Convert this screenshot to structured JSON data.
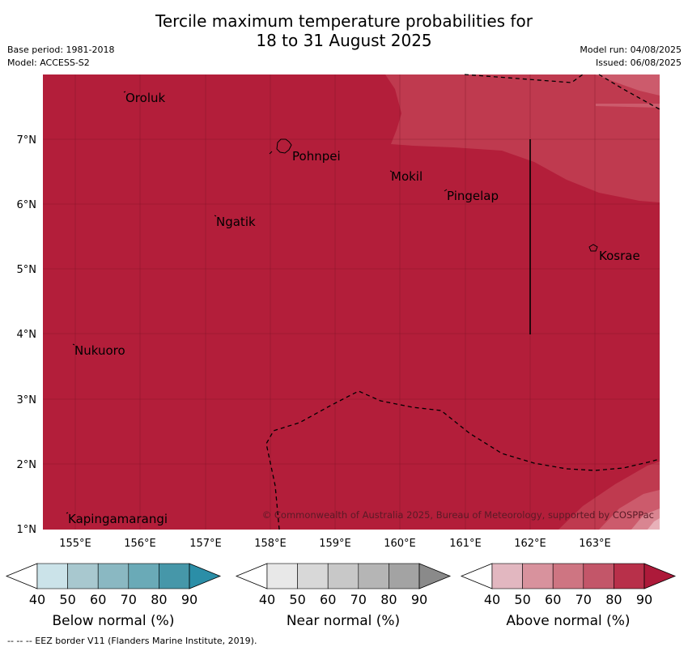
{
  "title_line1": "Tercile maximum temperature probabilities for",
  "title_line2": "18 to 31 August 2025",
  "base_period": "Base period: 1981-2018",
  "model": "Model: ACCESS-S2",
  "model_run": "Model run: 04/08/2025",
  "issued": "Issued: 06/08/2025",
  "lon_ticks": [
    "155°E",
    "156°E",
    "157°E",
    "158°E",
    "159°E",
    "160°E",
    "161°E",
    "162°E",
    "163°E"
  ],
  "lat_ticks": [
    "7°N",
    "6°N",
    "5°N",
    "4°N",
    "3°N",
    "2°N",
    "1°N"
  ],
  "places": {
    "oroluk": "Oroluk",
    "pohnpei": "Pohnpei",
    "mokil": "Mokil",
    "pingelap": "Pingelap",
    "ngatik": "Ngatik",
    "kosrae": "Kosrae",
    "nukuoro": "Nukuoro",
    "kapingamarangi": "Kapingamarangi"
  },
  "copyright": "© Commonwealth of Australia 2025, Bureau of Meteorology, supported by COSPPac",
  "colorbars": {
    "ticks": [
      "40",
      "50",
      "60",
      "70",
      "80",
      "90"
    ],
    "below": {
      "label": "Below normal (%)",
      "colors": [
        "#cbe3e9",
        "#a8c8cf",
        "#8ab8c2",
        "#6aaab7",
        "#4697a9",
        "#2b8ea7"
      ]
    },
    "near": {
      "label": "Near normal (%)",
      "colors": [
        "#e8e8e8",
        "#d8d8d8",
        "#c8c8c8",
        "#b5b5b5",
        "#a3a3a3",
        "#8a8a8a"
      ]
    },
    "above": {
      "label": "Above normal (%)",
      "colors": [
        "#e2b7c0",
        "#d8929d",
        "#ce7582",
        "#c35669",
        "#b8304a",
        "#ad1a3a"
      ]
    }
  },
  "map_colors": {
    "main": "#b31e3a",
    "light1": "#bf3a4f",
    "light2": "#cc5b6c",
    "light3": "#d98591",
    "light4": "#e8b1b9"
  },
  "footer": "--  --  -- EEZ border V11 (Flanders Marine Institute, 2019)."
}
